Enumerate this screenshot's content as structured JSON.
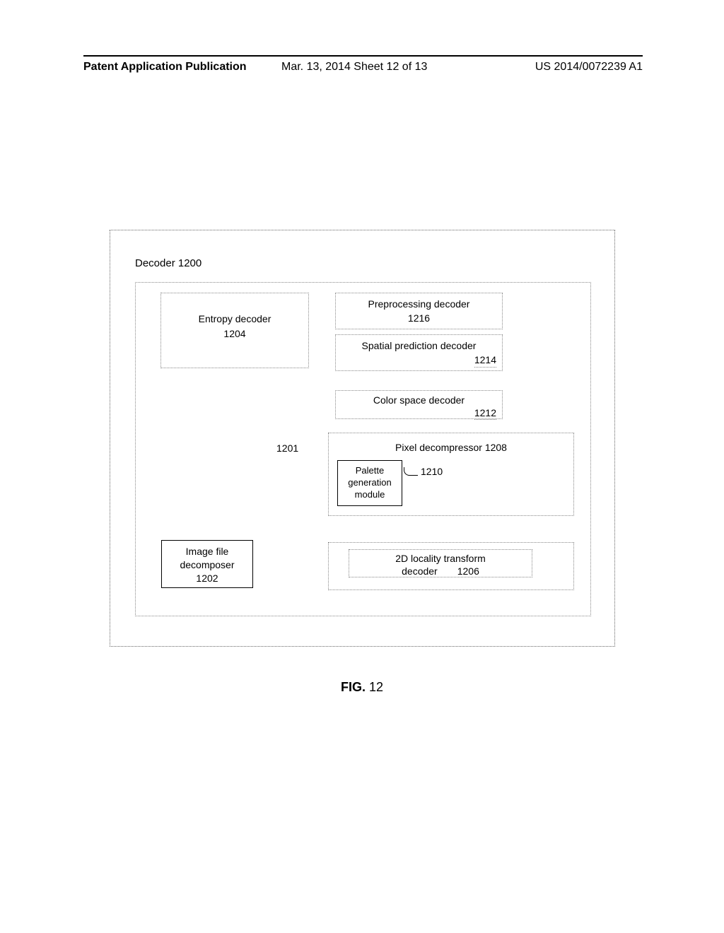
{
  "header": {
    "left": "Patent Application Publication",
    "mid": "Mar. 13, 2014  Sheet 12 of 13",
    "right": "US 2014/0072239 A1"
  },
  "diagram": {
    "title": "Decoder 1200",
    "entropy": {
      "line1": "Entropy decoder",
      "line2": "1204"
    },
    "preproc": {
      "line1": "Preprocessing decoder",
      "line2": "1216"
    },
    "spatial": {
      "line1": "Spatial prediction decoder",
      "num": "1214"
    },
    "color": {
      "line1": "Color space decoder",
      "num": "1212"
    },
    "label1201": "1201",
    "pixel": {
      "title": "Pixel decompressor 1208",
      "palette": {
        "line1": "Palette",
        "line2": "generation",
        "line3": "module"
      },
      "label1210": "1210"
    },
    "locality": {
      "line1": "2D locality transform",
      "line2a": "decoder",
      "line2b": "1206"
    },
    "imgfile": {
      "line1": "Image file",
      "line2": "decomposer",
      "line3": "1202"
    }
  },
  "figure": {
    "label": "FIG.",
    "num": "12"
  }
}
